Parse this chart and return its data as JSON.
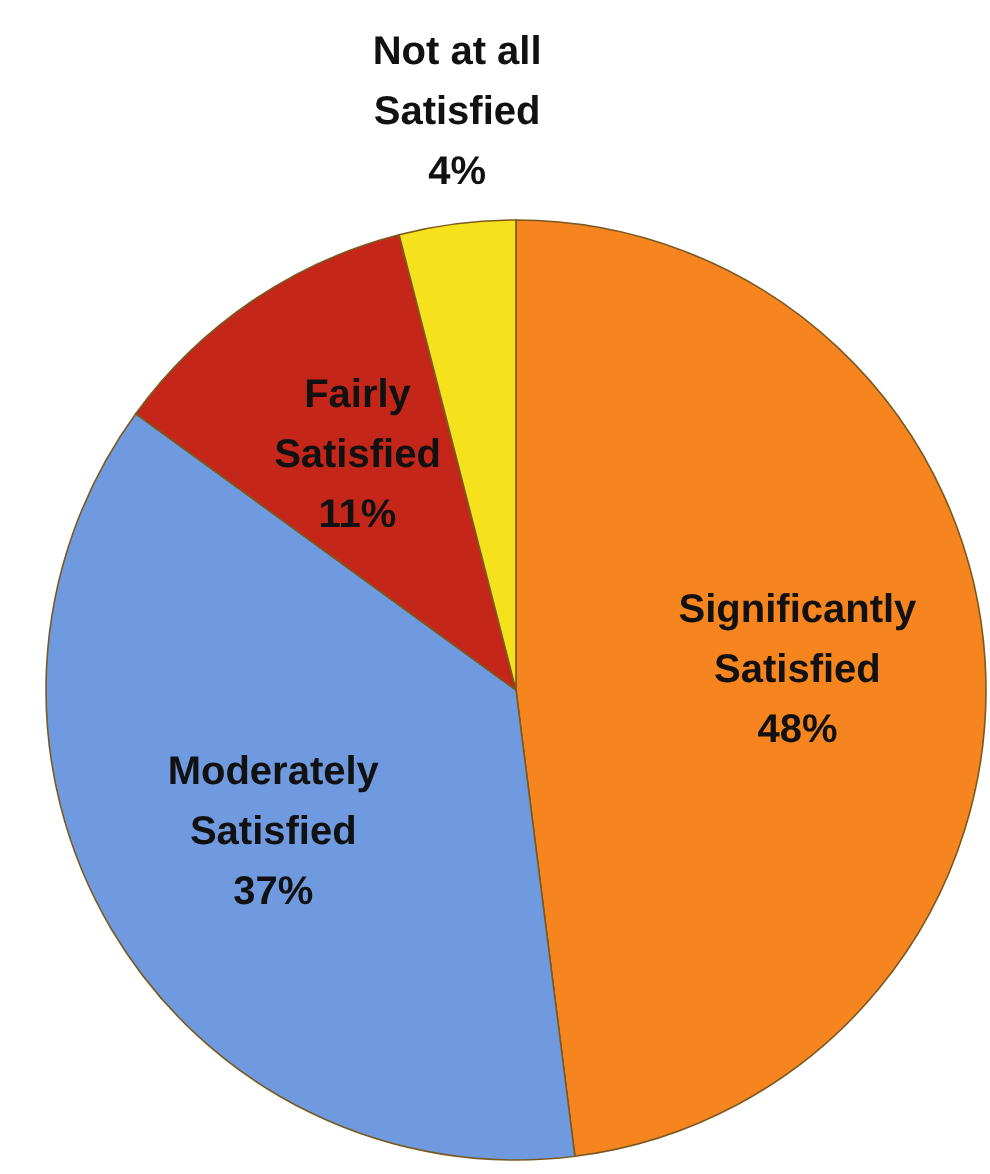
{
  "chart_data": {
    "type": "pie",
    "categories": [
      "Significantly Satisfied",
      "Moderately Satisfied",
      "Fairly Satisfied",
      "Not at all Satisfied"
    ],
    "values": [
      48,
      37,
      11,
      4
    ],
    "colors": [
      "#f6841f",
      "#6f9ae0",
      "#c4271a",
      "#f5e21d"
    ],
    "value_labels": [
      "48%",
      "37%",
      "11%",
      "4%"
    ],
    "legend": false
  }
}
